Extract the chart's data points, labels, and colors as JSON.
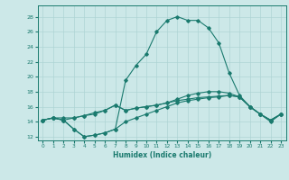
{
  "xlabel": "Humidex (Indice chaleur)",
  "background_color": "#cce8e8",
  "grid_color": "#aed4d4",
  "line_color": "#1a7a6e",
  "xlim": [
    -0.5,
    23.5
  ],
  "ylim": [
    11.5,
    29.5
  ],
  "xticks": [
    0,
    1,
    2,
    3,
    4,
    5,
    6,
    7,
    8,
    9,
    10,
    11,
    12,
    13,
    14,
    15,
    16,
    17,
    18,
    19,
    20,
    21,
    22,
    23
  ],
  "yticks": [
    12,
    14,
    16,
    18,
    20,
    22,
    24,
    26,
    28
  ],
  "series": [
    [
      14.2,
      14.5,
      14.2,
      13.0,
      12.0,
      12.2,
      12.5,
      13.0,
      19.5,
      21.5,
      23.0,
      26.0,
      27.5,
      28.0,
      27.5,
      27.5,
      26.5,
      24.5,
      20.5,
      17.5,
      16.0,
      15.0,
      14.0,
      15.0
    ],
    [
      14.2,
      14.5,
      14.2,
      13.0,
      12.0,
      12.2,
      12.5,
      13.0,
      14.0,
      14.5,
      15.0,
      15.5,
      16.0,
      16.5,
      16.8,
      17.0,
      17.2,
      17.3,
      17.5,
      17.3,
      16.0,
      15.0,
      14.2,
      15.0
    ],
    [
      14.2,
      14.5,
      14.2,
      14.5,
      14.8,
      15.0,
      15.5,
      16.2,
      15.5,
      15.8,
      16.0,
      16.2,
      16.5,
      16.8,
      17.0,
      17.2,
      17.3,
      17.4,
      17.5,
      17.3,
      16.0,
      15.0,
      14.2,
      15.0
    ],
    [
      14.2,
      14.5,
      14.5,
      14.5,
      14.8,
      15.2,
      15.5,
      16.2,
      15.5,
      15.8,
      16.0,
      16.2,
      16.5,
      17.0,
      17.5,
      17.8,
      18.0,
      18.0,
      17.8,
      17.3,
      16.0,
      15.0,
      14.2,
      15.0
    ]
  ]
}
